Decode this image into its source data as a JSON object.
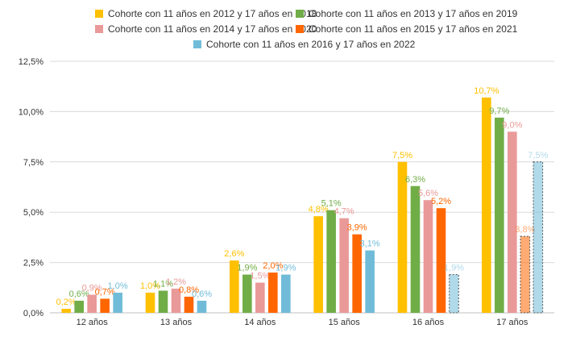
{
  "chart_data": {
    "type": "bar",
    "categories": [
      "12 años",
      "13 años",
      "14 años",
      "15 años",
      "16 años",
      "17 años"
    ],
    "series": [
      {
        "name": "Cohorte con 11 años en 2012 y 17 años en 2018",
        "color": "#FFC000",
        "values": [
          0.2,
          1.0,
          2.6,
          4.8,
          7.5,
          10.7
        ],
        "labels": [
          "0,2%",
          "1,0%",
          "2,6%",
          "4,8%",
          "7,5%",
          "10,7%"
        ]
      },
      {
        "name": "Cohorte con 11 años en 2013 y 17 años en 2019",
        "color": "#70AD47",
        "values": [
          0.6,
          1.1,
          1.9,
          5.1,
          6.3,
          9.7
        ],
        "labels": [
          "0,6%",
          "1,1%",
          "1,9%",
          "5,1%",
          "6,3%",
          "9,7%"
        ]
      },
      {
        "name": "Cohorte con 11 años en 2014 y 17 años en 2020",
        "color": "#EA9999",
        "values": [
          0.9,
          1.2,
          1.5,
          4.7,
          5.6,
          9.0
        ],
        "labels": [
          "0,9%",
          "1,2%",
          "1,5%",
          "4,7%",
          "5,6%",
          "9,0%"
        ]
      },
      {
        "name": "Cohorte con 11 años en 2015 y 17 años en 2021",
        "color": "#FF6600",
        "values": [
          0.7,
          0.8,
          2.0,
          3.9,
          5.2,
          3.8
        ],
        "labels": [
          "0,7%",
          "0,8%",
          "2,0%",
          "3,9%",
          "5,2%",
          "3,8%"
        ],
        "dashed_categories": [
          "17 años"
        ]
      },
      {
        "name": "Cohorte con 11 años en 2016 y 17 años en 2022",
        "color": "#70BCD8",
        "values": [
          1.0,
          0.6,
          1.9,
          3.1,
          1.9,
          7.5
        ],
        "labels": [
          "1,0%",
          "0,6%",
          "1,9%",
          "3,1%",
          "1,9%",
          "7,5%"
        ],
        "dashed_categories": [
          "16 años",
          "17 años"
        ]
      }
    ],
    "y_ticks": [
      "0,0%",
      "2,5%",
      "5,0%",
      "7,5%",
      "10,0%",
      "12,5%"
    ],
    "ylim": [
      0,
      12.5
    ],
    "grid": true,
    "legend_position": "top"
  }
}
